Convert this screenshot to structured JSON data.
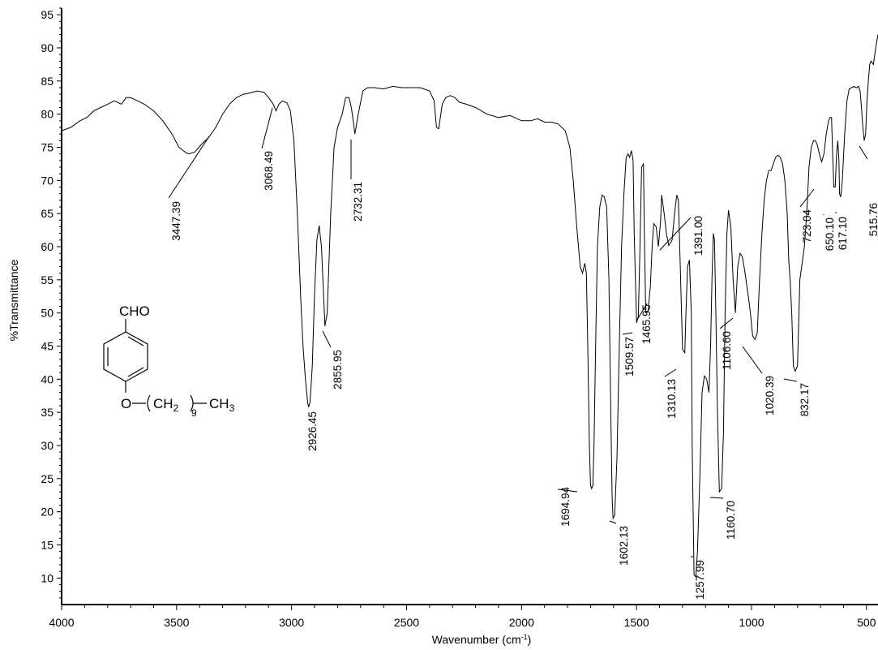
{
  "chart_data": {
    "type": "line",
    "xlabel": "Wavenumber (cm",
    "xlabel_sup": "-1",
    "xlabel_close": ")",
    "ylabel": "%Transmittance",
    "xlim": [
      4000,
      450
    ],
    "x_reversed": true,
    "ylim": [
      6,
      96
    ],
    "x_ticks": [
      4000,
      3500,
      3000,
      2500,
      2000,
      1500,
      1000,
      500
    ],
    "y_ticks": [
      10,
      15,
      20,
      25,
      30,
      35,
      40,
      45,
      50,
      55,
      60,
      65,
      70,
      75,
      80,
      85,
      90,
      95
    ],
    "grid": false,
    "series": [
      {
        "x": [
          4000,
          3960,
          3920,
          3890,
          3860,
          3830,
          3800,
          3770,
          3740,
          3720,
          3700,
          3670,
          3640,
          3600,
          3560,
          3520,
          3490,
          3460,
          3447,
          3420,
          3390,
          3360,
          3330,
          3300,
          3270,
          3240,
          3210,
          3180,
          3150,
          3120,
          3100,
          3080,
          3068,
          3055,
          3040,
          3020,
          3005,
          2990,
          2975,
          2960,
          2950,
          2940,
          2930,
          2926,
          2920,
          2910,
          2900,
          2890,
          2880,
          2870,
          2860,
          2855,
          2845,
          2830,
          2815,
          2800,
          2780,
          2765,
          2750,
          2740,
          2732,
          2725,
          2710,
          2690,
          2670,
          2640,
          2600,
          2560,
          2520,
          2480,
          2440,
          2400,
          2380,
          2370,
          2360,
          2355,
          2345,
          2330,
          2310,
          2290,
          2270,
          2240,
          2200,
          2150,
          2100,
          2050,
          2000,
          1960,
          1930,
          1900,
          1870,
          1840,
          1810,
          1790,
          1775,
          1760,
          1745,
          1735,
          1725,
          1718,
          1712,
          1705,
          1700,
          1695,
          1690,
          1685,
          1678,
          1670,
          1660,
          1650,
          1640,
          1630,
          1620,
          1612,
          1606,
          1602,
          1595,
          1585,
          1575,
          1565,
          1555,
          1545,
          1537,
          1530,
          1522,
          1515,
          1510,
          1500,
          1492,
          1485,
          1478,
          1470,
          1466,
          1460,
          1450,
          1440,
          1432,
          1425,
          1415,
          1405,
          1395,
          1391,
          1380,
          1370,
          1360,
          1345,
          1335,
          1325,
          1318,
          1310,
          1300,
          1290,
          1285,
          1278,
          1270,
          1262,
          1258,
          1250,
          1242,
          1235,
          1225,
          1215,
          1205,
          1195,
          1185,
          1178,
          1172,
          1166,
          1161,
          1155,
          1148,
          1140,
          1130,
          1122,
          1115,
          1107,
          1100,
          1090,
          1080,
          1070,
          1060,
          1050,
          1040,
          1030,
          1020,
          1012,
          1005,
          995,
          985,
          975,
          965,
          955,
          945,
          935,
          925,
          915,
          905,
          895,
          885,
          875,
          865,
          855,
          845,
          838,
          832,
          825,
          818,
          810,
          800,
          790,
          780,
          770,
          760,
          750,
          740,
          730,
          723,
          715,
          705,
          695,
          685,
          675,
          665,
          658,
          652,
          648,
          642,
          636,
          630,
          625,
          620,
          617,
          612,
          605,
          595,
          585,
          575,
          565,
          555,
          545,
          535,
          528,
          522,
          516,
          510,
          504,
          498,
          492,
          486,
          480,
          470,
          460,
          450
        ],
        "y": [
          77.5,
          78,
          79,
          79.5,
          80.5,
          81,
          81.5,
          82,
          81.5,
          82.5,
          82.5,
          82,
          81.5,
          80.5,
          79,
          77,
          75,
          74.2,
          74,
          74.3,
          75.5,
          76.5,
          78,
          80,
          81.5,
          82.5,
          83,
          83.2,
          83.5,
          83.3,
          82.5,
          81.5,
          80.5,
          81.5,
          82,
          81.7,
          80.5,
          76,
          65,
          52,
          45,
          40,
          36.5,
          35.8,
          36.5,
          42,
          53,
          61,
          63.2,
          60,
          52,
          48,
          50,
          65,
          75,
          78,
          80,
          82.5,
          82.5,
          81,
          79,
          77,
          80,
          83.5,
          84,
          84,
          83.8,
          84.2,
          84,
          84,
          84,
          83.5,
          82,
          78,
          77.8,
          79,
          81.5,
          82.5,
          82.8,
          82.5,
          81.8,
          81.5,
          81,
          80,
          79.5,
          79.8,
          79,
          79,
          79.3,
          78.8,
          78.8,
          78.5,
          77.5,
          75,
          70,
          63,
          57,
          56,
          57.5,
          56,
          45,
          30,
          24,
          23.5,
          24,
          30,
          45,
          60,
          66,
          67.8,
          67.5,
          66,
          55,
          35,
          22,
          19,
          19.5,
          28,
          45,
          60,
          68,
          73.5,
          74,
          73.5,
          74.5,
          73,
          62,
          48.5,
          49.5,
          60,
          72,
          72.5,
          62,
          50,
          50.2,
          54,
          60,
          63.5,
          63,
          60,
          64,
          67.8,
          65,
          62,
          60.2,
          61,
          65,
          67.8,
          67,
          57,
          44.5,
          44,
          50,
          57,
          58,
          50,
          30,
          10.5,
          10.2,
          14,
          25,
          38,
          40.5,
          40,
          38,
          45,
          55,
          62,
          61,
          50,
          35,
          23,
          23.5,
          32,
          50,
          62,
          65.5,
          63,
          55,
          50,
          57,
          59,
          58.5,
          56.5,
          54,
          52,
          50,
          46.5,
          46,
          47,
          55,
          62,
          67,
          70,
          71.5,
          71.5,
          72.5,
          73.5,
          73.8,
          73.5,
          72.5,
          70,
          65,
          58,
          55,
          50,
          42,
          41.2,
          42,
          55,
          57.5,
          60,
          65,
          72,
          75,
          76,
          76,
          75.5,
          74,
          72.8,
          74,
          77,
          79,
          79.5,
          79.5,
          75,
          69,
          69,
          74,
          76,
          73,
          68,
          67.5,
          70,
          77,
          82,
          83.8,
          84,
          84.2,
          84,
          84.2,
          83.5,
          81,
          78,
          76,
          77,
          82,
          85,
          87.5,
          88,
          87.5,
          90,
          92
        ]
      }
    ],
    "peak_labels": [
      "3447.39",
      "3068.49",
      "2732.31",
      "2926.45",
      "2855.95",
      "1694.94",
      "1602.13",
      "1509.57",
      "1465.95",
      "1391.00",
      "1310.13",
      "1257.99",
      "1160.70",
      "1106.60",
      "1020.39",
      "832.17",
      "723.04",
      "650.10",
      "617.10",
      "515.76"
    ],
    "structure": {
      "top_group": "CHO",
      "left_atom": "O",
      "group": "CH",
      "group_sub": "2",
      "repeat": "9",
      "end_group": "CH",
      "end_sub": "3"
    }
  }
}
